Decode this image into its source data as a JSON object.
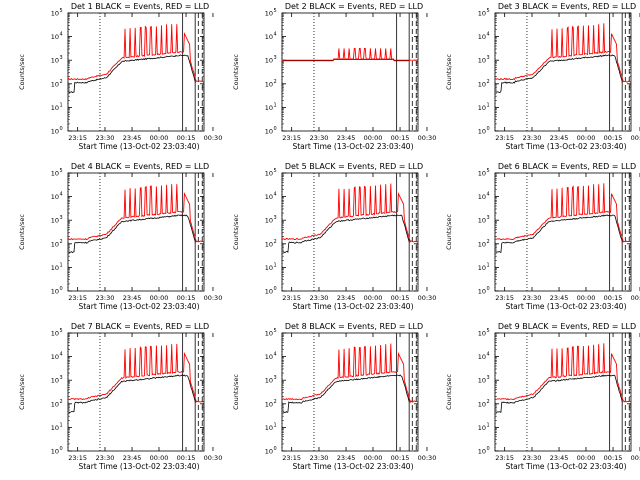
{
  "chart_data": [
    {
      "type": "line",
      "title": "Det 1 BLACK = Events, RED = LLD",
      "xlabel": "Start Time (13-Oct-02 23:03:40)",
      "ylabel": "Counts/sec",
      "yscale": "log",
      "ylim_exponents": [
        0,
        5
      ],
      "x_tick_labels": [
        "23:15",
        "23:30",
        "23:45",
        "00:00",
        "00:15",
        "00:30"
      ],
      "series": [
        {
          "name": "BLACK = Events",
          "color": "#000000"
        },
        {
          "name": "RED = LLD",
          "color": "#ff0000"
        }
      ],
      "profile": "normal",
      "vlines": [
        {
          "style": "dotted"
        },
        {
          "style": "dotted"
        },
        {
          "style": "solid"
        },
        {
          "style": "solid"
        },
        {
          "style": "dashed"
        },
        {
          "style": "dashed"
        }
      ]
    },
    {
      "type": "line",
      "title": "Det 2 BLACK = Events, RED = LLD",
      "xlabel": "Start Time (13-Oct-02 23:03:40)",
      "ylabel": "Counts/sec",
      "yscale": "log",
      "ylim_exponents": [
        0,
        5
      ],
      "x_tick_labels": [
        "23:15",
        "23:30",
        "23:45",
        "00:00",
        "00:15",
        "00:30"
      ],
      "series": [
        {
          "name": "BLACK = Events",
          "color": "#000000"
        },
        {
          "name": "RED = LLD",
          "color": "#ff0000"
        }
      ],
      "profile": "flat",
      "vlines": [
        {
          "style": "dotted"
        },
        {
          "style": "dotted"
        },
        {
          "style": "solid"
        },
        {
          "style": "solid"
        },
        {
          "style": "dashed"
        },
        {
          "style": "dashed"
        }
      ]
    },
    {
      "type": "line",
      "title": "Det 3 BLACK = Events, RED = LLD",
      "xlabel": "Start Time (13-Oct-02 23:03:40)",
      "ylabel": "Counts/sec",
      "yscale": "log",
      "ylim_exponents": [
        0,
        5
      ],
      "x_tick_labels": [
        "23:15",
        "23:30",
        "23:45",
        "00:00",
        "00:15",
        "00:30"
      ],
      "series": [
        {
          "name": "BLACK = Events",
          "color": "#000000"
        },
        {
          "name": "RED = LLD",
          "color": "#ff0000"
        }
      ],
      "profile": "normal",
      "vlines": [
        {
          "style": "dotted"
        },
        {
          "style": "dotted"
        },
        {
          "style": "solid"
        },
        {
          "style": "solid"
        },
        {
          "style": "dashed"
        },
        {
          "style": "dashed"
        }
      ]
    },
    {
      "type": "line",
      "title": "Det 4 BLACK = Events, RED = LLD",
      "xlabel": "Start Time (13-Oct-02 23:03:40)",
      "ylabel": "Counts/sec",
      "yscale": "log",
      "ylim_exponents": [
        0,
        5
      ],
      "x_tick_labels": [
        "23:15",
        "23:30",
        "23:45",
        "00:00",
        "00:15",
        "00:30"
      ],
      "series": [
        {
          "name": "BLACK = Events",
          "color": "#000000"
        },
        {
          "name": "RED = LLD",
          "color": "#ff0000"
        }
      ],
      "profile": "normal",
      "vlines": [
        {
          "style": "dotted"
        },
        {
          "style": "dotted"
        },
        {
          "style": "solid"
        },
        {
          "style": "solid"
        },
        {
          "style": "dashed"
        },
        {
          "style": "dashed"
        }
      ]
    },
    {
      "type": "line",
      "title": "Det 5 BLACK = Events, RED = LLD",
      "xlabel": "Start Time (13-Oct-02 23:03:40)",
      "ylabel": "Counts/sec",
      "yscale": "log",
      "ylim_exponents": [
        0,
        5
      ],
      "x_tick_labels": [
        "23:15",
        "23:30",
        "23:45",
        "00:00",
        "00:15",
        "00:30"
      ],
      "series": [
        {
          "name": "BLACK = Events",
          "color": "#000000"
        },
        {
          "name": "RED = LLD",
          "color": "#ff0000"
        }
      ],
      "profile": "normal",
      "vlines": [
        {
          "style": "dotted"
        },
        {
          "style": "dotted"
        },
        {
          "style": "solid"
        },
        {
          "style": "solid"
        },
        {
          "style": "dashed"
        },
        {
          "style": "dashed"
        }
      ]
    },
    {
      "type": "line",
      "title": "Det 6 BLACK = Events, RED = LLD",
      "xlabel": "Start Time (13-Oct-02 23:03:40)",
      "ylabel": "Counts/sec",
      "yscale": "log",
      "ylim_exponents": [
        0,
        5
      ],
      "x_tick_labels": [
        "23:15",
        "23:30",
        "23:45",
        "00:00",
        "00:15",
        "00:30"
      ],
      "series": [
        {
          "name": "BLACK = Events",
          "color": "#000000"
        },
        {
          "name": "RED = LLD",
          "color": "#ff0000"
        }
      ],
      "profile": "normal",
      "vlines": [
        {
          "style": "dotted"
        },
        {
          "style": "dotted"
        },
        {
          "style": "solid"
        },
        {
          "style": "solid"
        },
        {
          "style": "dashed"
        },
        {
          "style": "dashed"
        }
      ]
    },
    {
      "type": "line",
      "title": "Det 7 BLACK = Events, RED = LLD",
      "xlabel": "Start Time (13-Oct-02 23:03:40)",
      "ylabel": "Counts/sec",
      "yscale": "log",
      "ylim_exponents": [
        0,
        5
      ],
      "x_tick_labels": [
        "23:15",
        "23:30",
        "23:45",
        "00:00",
        "00:15",
        "00:30"
      ],
      "series": [
        {
          "name": "BLACK = Events",
          "color": "#000000"
        },
        {
          "name": "RED = LLD",
          "color": "#ff0000"
        }
      ],
      "profile": "normal",
      "vlines": [
        {
          "style": "dotted"
        },
        {
          "style": "dotted"
        },
        {
          "style": "solid"
        },
        {
          "style": "solid"
        },
        {
          "style": "dashed"
        },
        {
          "style": "dashed"
        }
      ]
    },
    {
      "type": "line",
      "title": "Det 8 BLACK = Events, RED = LLD",
      "xlabel": "Start Time (13-Oct-02 23:03:40)",
      "ylabel": "Counts/sec",
      "yscale": "log",
      "ylim_exponents": [
        0,
        5
      ],
      "x_tick_labels": [
        "23:15",
        "23:30",
        "23:45",
        "00:00",
        "00:15",
        "00:30"
      ],
      "series": [
        {
          "name": "BLACK = Events",
          "color": "#000000"
        },
        {
          "name": "RED = LLD",
          "color": "#ff0000"
        }
      ],
      "profile": "normal",
      "vlines": [
        {
          "style": "dotted"
        },
        {
          "style": "dotted"
        },
        {
          "style": "solid"
        },
        {
          "style": "solid"
        },
        {
          "style": "dashed"
        },
        {
          "style": "dashed"
        }
      ]
    },
    {
      "type": "line",
      "title": "Det 9 BLACK = Events, RED = LLD",
      "xlabel": "Start Time (13-Oct-02 23:03:40)",
      "ylabel": "Counts/sec",
      "yscale": "log",
      "ylim_exponents": [
        0,
        5
      ],
      "x_tick_labels": [
        "23:15",
        "23:30",
        "23:45",
        "00:00",
        "00:15",
        "00:30"
      ],
      "series": [
        {
          "name": "BLACK = Events",
          "color": "#000000"
        },
        {
          "name": "RED = LLD",
          "color": "#ff0000"
        }
      ],
      "profile": "normal",
      "vlines": [
        {
          "style": "dotted"
        },
        {
          "style": "dotted"
        },
        {
          "style": "solid"
        },
        {
          "style": "solid"
        },
        {
          "style": "dashed"
        },
        {
          "style": "dashed"
        }
      ]
    }
  ]
}
